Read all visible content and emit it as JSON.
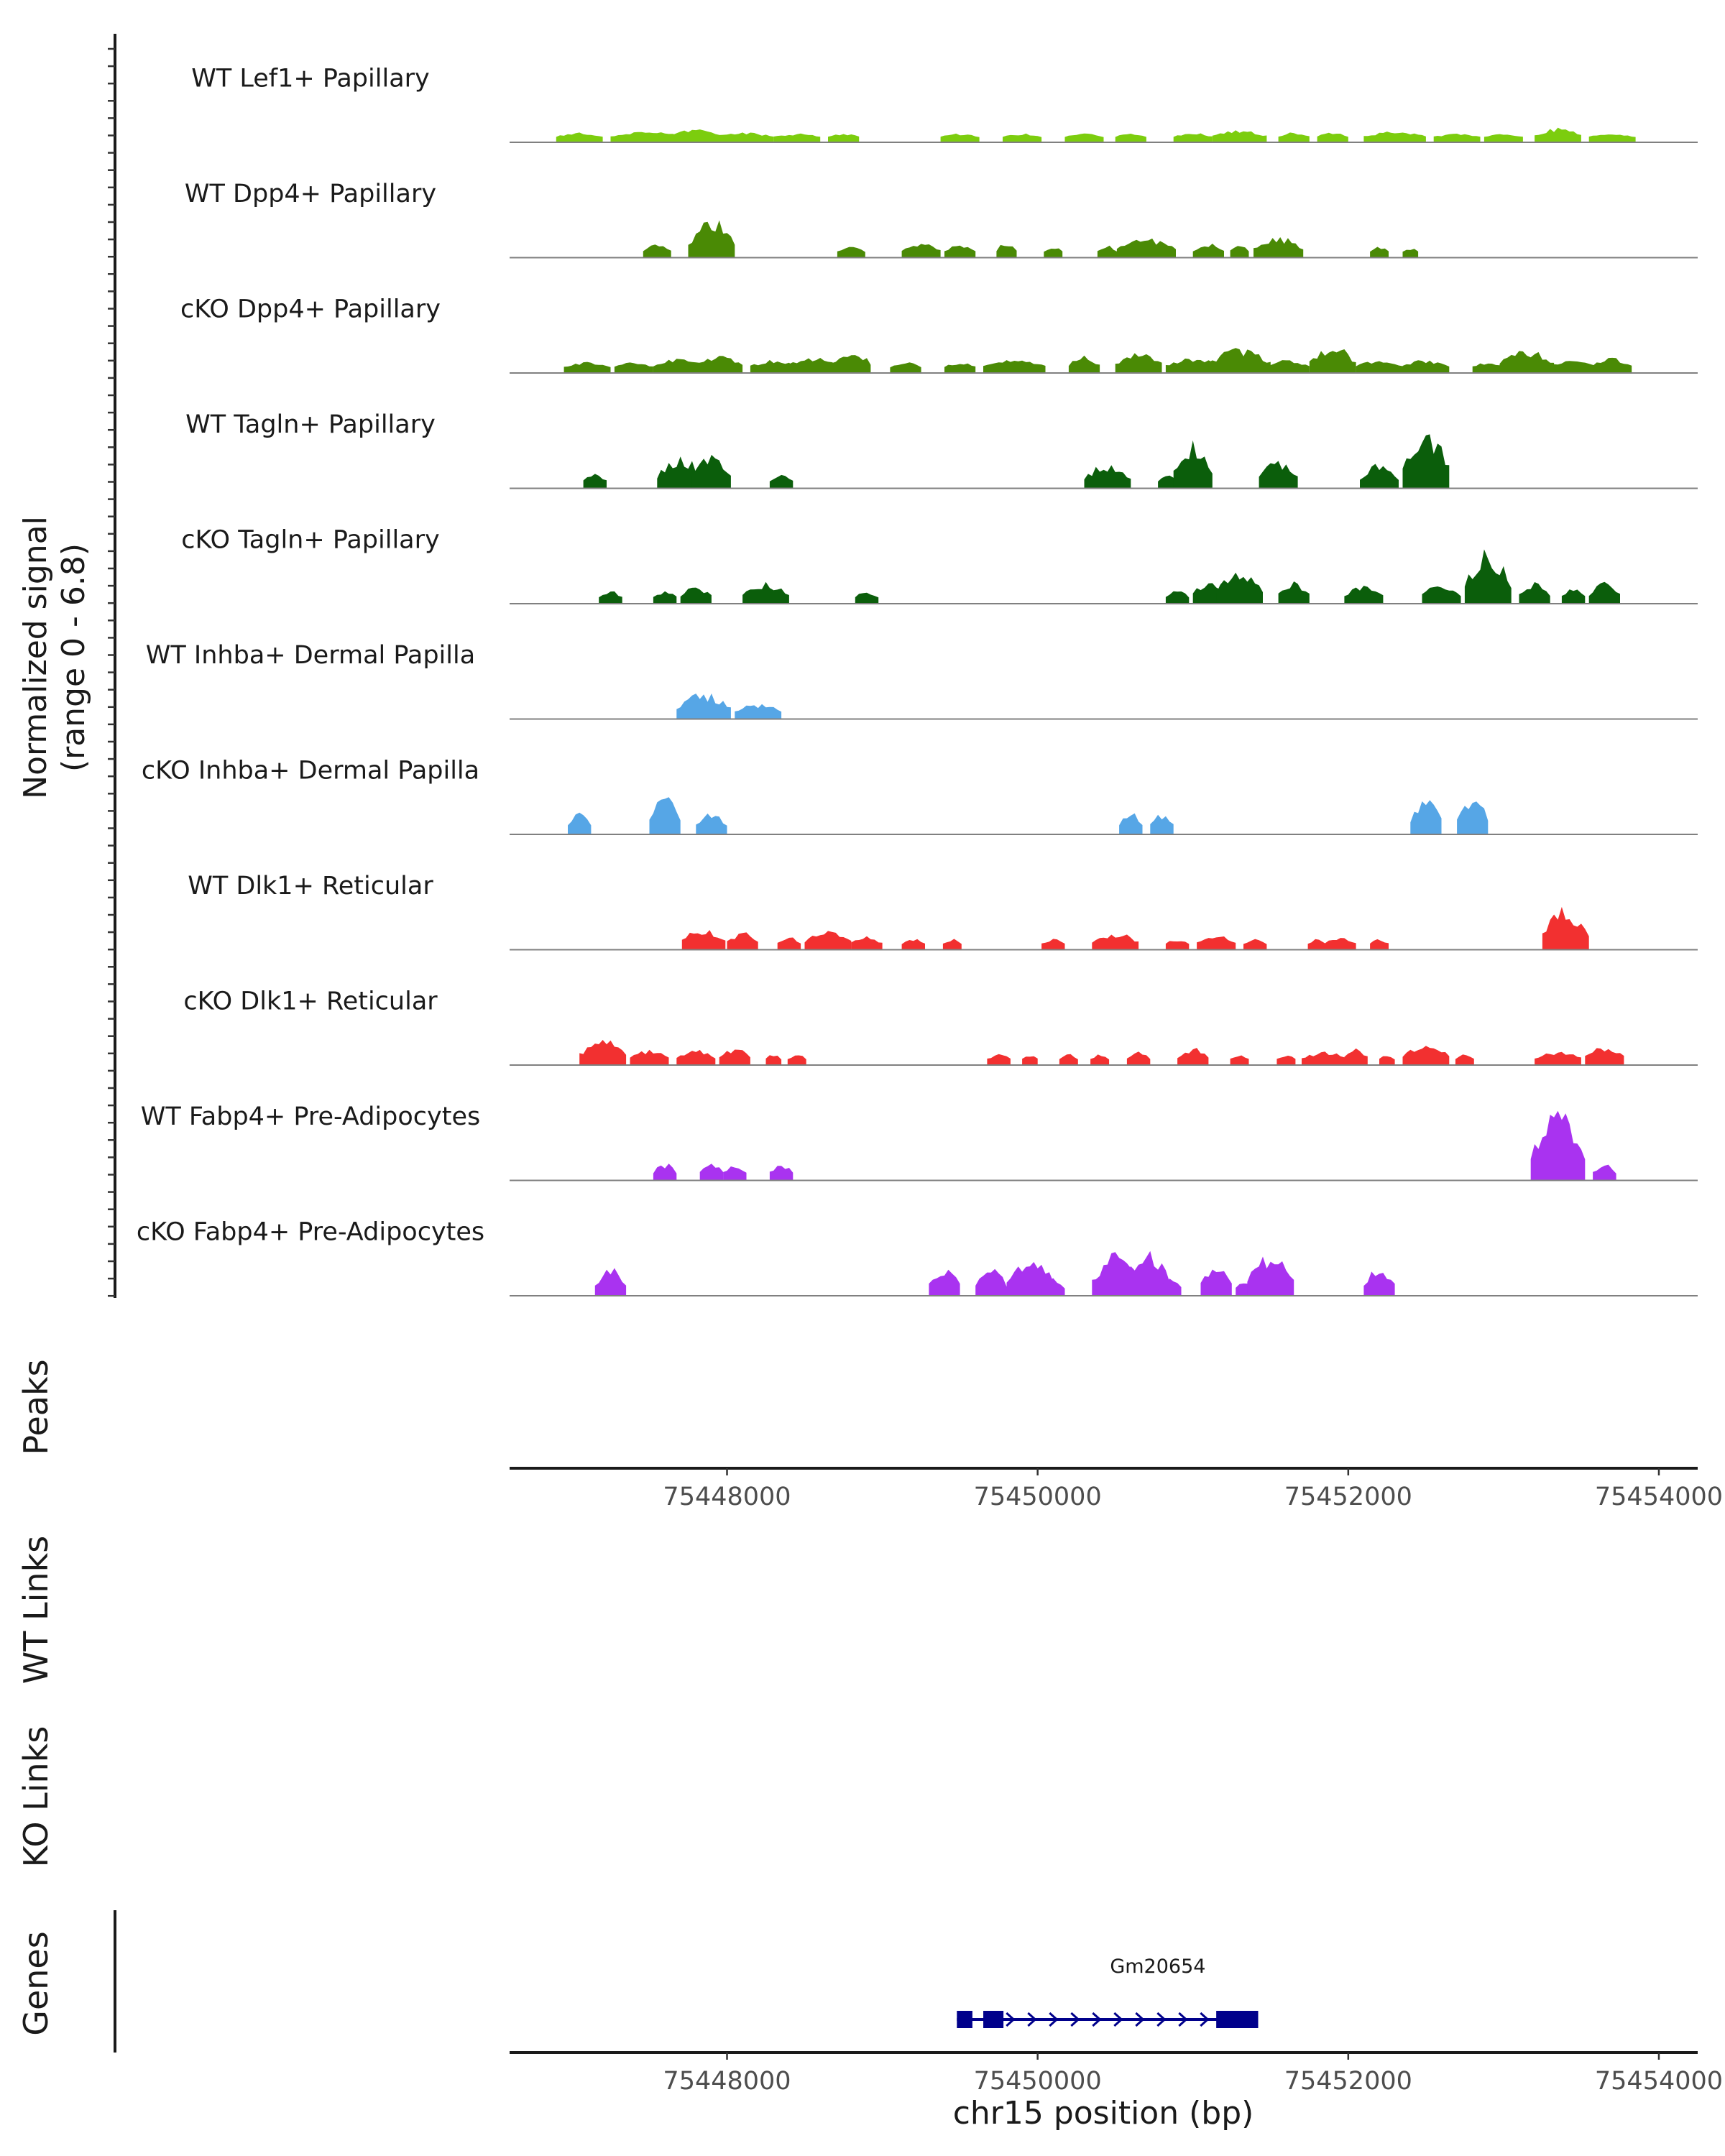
{
  "chart_data": {
    "type": "area",
    "title": "",
    "chromosome": "chr15",
    "region": [
      75446600,
      75454250
    ],
    "signal_axis_label": "Normalized signal",
    "signal_range_label": "(range 0 - 6.8)",
    "signal_range": [
      0,
      6.8
    ],
    "xlabel": "chr15 position (bp)",
    "x_ticks": [
      "75448000",
      "75450000",
      "75452000",
      "75454000"
    ],
    "x_tick_values": [
      75448000,
      75450000,
      75452000,
      75454000
    ],
    "tracks": [
      {
        "name": "WT Lef1+ Papillary",
        "color": "#7CCD0E",
        "peaks": [
          [
            75447050,
            0.5,
            300
          ],
          [
            75447500,
            0.6,
            500
          ],
          [
            75447800,
            0.9,
            300
          ],
          [
            75448100,
            0.5,
            400
          ],
          [
            75448450,
            0.4,
            300
          ],
          [
            75448750,
            0.4,
            200
          ],
          [
            75449500,
            0.4,
            250
          ],
          [
            75449900,
            0.4,
            250
          ],
          [
            75450300,
            0.4,
            250
          ],
          [
            75450600,
            0.4,
            200
          ],
          [
            75451000,
            0.5,
            250
          ],
          [
            75451300,
            0.7,
            350
          ],
          [
            75451650,
            0.5,
            200
          ],
          [
            75451900,
            0.5,
            200
          ],
          [
            75452300,
            0.6,
            400
          ],
          [
            75452700,
            0.4,
            300
          ],
          [
            75453000,
            0.4,
            250
          ],
          [
            75453350,
            0.9,
            300
          ],
          [
            75453700,
            0.4,
            300
          ]
        ]
      },
      {
        "name": "WT Dpp4+ Papillary",
        "color": "#4A8A05",
        "peaks": [
          [
            75447550,
            0.8,
            180
          ],
          [
            75447900,
            3.2,
            300
          ],
          [
            75448800,
            0.6,
            180
          ],
          [
            75449250,
            0.9,
            250
          ],
          [
            75449500,
            0.9,
            200
          ],
          [
            75449800,
            1.0,
            130
          ],
          [
            75450100,
            0.7,
            120
          ],
          [
            75450450,
            0.7,
            130
          ],
          [
            75450700,
            1.4,
            380
          ],
          [
            75451100,
            0.9,
            200
          ],
          [
            75451300,
            0.8,
            120
          ],
          [
            75451550,
            1.5,
            320
          ],
          [
            75452200,
            0.6,
            120
          ],
          [
            75452400,
            0.5,
            100
          ]
        ]
      },
      {
        "name": "cKO Dpp4+ Papillary",
        "color": "#4A8A05",
        "peaks": [
          [
            75447100,
            0.6,
            300
          ],
          [
            75447400,
            0.6,
            250
          ],
          [
            75447700,
            0.9,
            350
          ],
          [
            75447950,
            1.2,
            300
          ],
          [
            75448300,
            0.8,
            300
          ],
          [
            75448550,
            1.0,
            350
          ],
          [
            75448800,
            1.8,
            250
          ],
          [
            75449150,
            0.6,
            200
          ],
          [
            75449500,
            0.6,
            200
          ],
          [
            75449850,
            0.8,
            400
          ],
          [
            75450300,
            1.2,
            200
          ],
          [
            75450650,
            1.6,
            300
          ],
          [
            75451000,
            1.0,
            350
          ],
          [
            75451300,
            1.8,
            400
          ],
          [
            75451600,
            0.8,
            300
          ],
          [
            75451900,
            2.1,
            300
          ],
          [
            75452200,
            0.8,
            300
          ],
          [
            75452500,
            0.8,
            300
          ],
          [
            75452900,
            0.6,
            200
          ],
          [
            75453150,
            1.8,
            350
          ],
          [
            75453450,
            0.8,
            300
          ],
          [
            75453700,
            1.0,
            250
          ]
        ]
      },
      {
        "name": "WT Tagln+ Papillary",
        "color": "#0B5E0B",
        "peaks": [
          [
            75447150,
            1.0,
            150
          ],
          [
            75447700,
            2.5,
            300
          ],
          [
            75447900,
            2.8,
            250
          ],
          [
            75448350,
            1.0,
            150
          ],
          [
            75450450,
            1.9,
            300
          ],
          [
            75450850,
            1.0,
            150
          ],
          [
            75451000,
            4.0,
            250
          ],
          [
            75451550,
            2.1,
            250
          ],
          [
            75452200,
            1.8,
            250
          ],
          [
            75452500,
            5.0,
            300
          ]
        ]
      },
      {
        "name": "cKO Tagln+ Papillary",
        "color": "#0B5E0B",
        "peaks": [
          [
            75447250,
            0.8,
            150
          ],
          [
            75447600,
            0.8,
            150
          ],
          [
            75447800,
            1.2,
            200
          ],
          [
            75448250,
            1.5,
            300
          ],
          [
            75448900,
            0.8,
            150
          ],
          [
            75450900,
            0.8,
            150
          ],
          [
            75451100,
            1.8,
            200
          ],
          [
            75451300,
            2.5,
            300
          ],
          [
            75451650,
            1.7,
            200
          ],
          [
            75452100,
            1.2,
            250
          ],
          [
            75452600,
            1.4,
            250
          ],
          [
            75452900,
            4.5,
            300
          ],
          [
            75453200,
            1.5,
            200
          ],
          [
            75453450,
            1.0,
            150
          ],
          [
            75453650,
            1.6,
            200
          ]
        ]
      },
      {
        "name": "WT Inhba+ Dermal Papilla",
        "color": "#56A6E6",
        "peaks": [
          [
            75447850,
            2.0,
            350
          ],
          [
            75448200,
            1.0,
            300
          ]
        ]
      },
      {
        "name": "cKO Inhba+ Dermal Papilla",
        "color": "#56A6E6",
        "peaks": [
          [
            75447050,
            1.5,
            150
          ],
          [
            75447600,
            3.4,
            200
          ],
          [
            75447900,
            1.6,
            200
          ],
          [
            75450600,
            1.6,
            150
          ],
          [
            75450800,
            1.6,
            150
          ],
          [
            75452500,
            3.3,
            200
          ],
          [
            75452800,
            3.3,
            200
          ]
        ]
      },
      {
        "name": "WT Dlk1+ Reticular",
        "color": "#F23030",
        "peaks": [
          [
            75447850,
            1.6,
            280
          ],
          [
            75448100,
            1.2,
            200
          ],
          [
            75448400,
            0.8,
            150
          ],
          [
            75448650,
            1.3,
            300
          ],
          [
            75448900,
            0.8,
            200
          ],
          [
            75449200,
            0.6,
            150
          ],
          [
            75449450,
            0.6,
            120
          ],
          [
            75450100,
            0.6,
            150
          ],
          [
            75450500,
            1.2,
            300
          ],
          [
            75450900,
            0.6,
            150
          ],
          [
            75451150,
            0.9,
            250
          ],
          [
            75451400,
            0.6,
            150
          ],
          [
            75451800,
            0.6,
            120
          ],
          [
            75451950,
            0.8,
            200
          ],
          [
            75452200,
            0.6,
            120
          ],
          [
            75453400,
            3.4,
            300
          ]
        ]
      },
      {
        "name": "cKO Dlk1+ Reticular",
        "color": "#F23030",
        "peaks": [
          [
            75447200,
            2.0,
            300
          ],
          [
            75447500,
            1.0,
            250
          ],
          [
            75447800,
            1.0,
            250
          ],
          [
            75448050,
            1.2,
            200
          ],
          [
            75448300,
            0.6,
            100
          ],
          [
            75448450,
            0.6,
            120
          ],
          [
            75449750,
            0.6,
            150
          ],
          [
            75449950,
            0.6,
            100
          ],
          [
            75450200,
            0.6,
            120
          ],
          [
            75450400,
            0.6,
            120
          ],
          [
            75450650,
            0.8,
            150
          ],
          [
            75451000,
            1.2,
            200
          ],
          [
            75451300,
            0.6,
            120
          ],
          [
            75451600,
            0.6,
            120
          ],
          [
            75451850,
            0.8,
            300
          ],
          [
            75452050,
            1.2,
            150
          ],
          [
            75452250,
            0.6,
            100
          ],
          [
            75452500,
            1.6,
            300
          ],
          [
            75452750,
            0.6,
            120
          ],
          [
            75453350,
            0.9,
            300
          ],
          [
            75453650,
            1.4,
            250
          ]
        ]
      },
      {
        "name": "WT Fabp4+ Pre-Adipocytes",
        "color": "#A933F0",
        "peaks": [
          [
            75447600,
            1.2,
            150
          ],
          [
            75447900,
            1.2,
            150
          ],
          [
            75448050,
            1.2,
            150
          ],
          [
            75448350,
            1.2,
            150
          ],
          [
            75453350,
            5.8,
            350
          ],
          [
            75453650,
            1.2,
            150
          ]
        ]
      },
      {
        "name": "cKO Fabp4+ Pre-Adipocytes",
        "color": "#A933F0",
        "peaks": [
          [
            75447250,
            2.2,
            200
          ],
          [
            75449400,
            2.2,
            200
          ],
          [
            75449700,
            2.2,
            200
          ],
          [
            75449950,
            3.4,
            300
          ],
          [
            75450100,
            1.2,
            150
          ],
          [
            75450500,
            3.4,
            300
          ],
          [
            75450700,
            3.8,
            300
          ],
          [
            75450850,
            1.2,
            150
          ],
          [
            75451150,
            2.3,
            200
          ],
          [
            75451350,
            1.2,
            150
          ],
          [
            75451500,
            3.4,
            300
          ],
          [
            75452200,
            2.2,
            200
          ]
        ]
      }
    ],
    "peaks_panel": {
      "label": "Peaks",
      "items": []
    },
    "links_panels": [
      {
        "label": "WT Links",
        "items": []
      },
      {
        "label": "KO Links",
        "items": []
      }
    ],
    "genes_panel": {
      "label": "Genes",
      "genes": [
        {
          "name": "Gm20654",
          "start": 75449480,
          "end": 75451420,
          "strand": "+",
          "exons": [
            [
              75449480,
              75449580
            ],
            [
              75449650,
              75449780
            ],
            [
              75451150,
              75451420
            ]
          ],
          "color": "#00008B"
        }
      ]
    }
  }
}
